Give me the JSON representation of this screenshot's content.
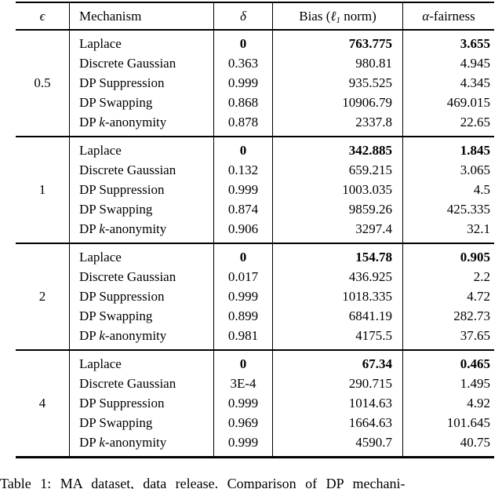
{
  "header": {
    "epsilon": "ϵ",
    "mechanism": "Mechanism",
    "delta": "δ",
    "bias": {
      "pre": "Bias (",
      "ell": "ℓ",
      "sub": "1",
      "post": " norm)"
    },
    "fairness": {
      "alpha": "α",
      "post": "-fairness"
    }
  },
  "groups": [
    {
      "epsilon": "0.5",
      "rows": [
        {
          "mechanism": {
            "pre": "Laplace",
            "it": "",
            "post": ""
          },
          "delta": "0",
          "bias": "763.775",
          "fairness": "3.655"
        },
        {
          "mechanism": {
            "pre": "Discrete Gaussian",
            "it": "",
            "post": ""
          },
          "delta": "0.363",
          "bias": "980.81",
          "fairness": "4.945"
        },
        {
          "mechanism": {
            "pre": "DP Suppression",
            "it": "",
            "post": ""
          },
          "delta": "0.999",
          "bias": "935.525",
          "fairness": "4.345"
        },
        {
          "mechanism": {
            "pre": "DP Swapping",
            "it": "",
            "post": ""
          },
          "delta": "0.868",
          "bias": "10906.79",
          "fairness": "469.015"
        },
        {
          "mechanism": {
            "pre": "DP ",
            "it": "k",
            "post": "-anonymity"
          },
          "delta": "0.878",
          "bias": "2337.8",
          "fairness": "22.65"
        }
      ]
    },
    {
      "epsilon": "1",
      "rows": [
        {
          "mechanism": {
            "pre": "Laplace",
            "it": "",
            "post": ""
          },
          "delta": "0",
          "bias": "342.885",
          "fairness": "1.845"
        },
        {
          "mechanism": {
            "pre": "Discrete Gaussian",
            "it": "",
            "post": ""
          },
          "delta": "0.132",
          "bias": "659.215",
          "fairness": "3.065"
        },
        {
          "mechanism": {
            "pre": "DP Suppression",
            "it": "",
            "post": ""
          },
          "delta": "0.999",
          "bias": "1003.035",
          "fairness": "4.5"
        },
        {
          "mechanism": {
            "pre": "DP Swapping",
            "it": "",
            "post": ""
          },
          "delta": "0.874",
          "bias": "9859.26",
          "fairness": "425.335"
        },
        {
          "mechanism": {
            "pre": "DP ",
            "it": "k",
            "post": "-anonymity"
          },
          "delta": "0.906",
          "bias": "3297.4",
          "fairness": "32.1"
        }
      ]
    },
    {
      "epsilon": "2",
      "rows": [
        {
          "mechanism": {
            "pre": "Laplace",
            "it": "",
            "post": ""
          },
          "delta": "0",
          "bias": "154.78",
          "fairness": "0.905"
        },
        {
          "mechanism": {
            "pre": "Discrete Gaussian",
            "it": "",
            "post": ""
          },
          "delta": "0.017",
          "bias": "436.925",
          "fairness": "2.2"
        },
        {
          "mechanism": {
            "pre": "DP Suppression",
            "it": "",
            "post": ""
          },
          "delta": "0.999",
          "bias": "1018.335",
          "fairness": "4.72"
        },
        {
          "mechanism": {
            "pre": "DP Swapping",
            "it": "",
            "post": ""
          },
          "delta": "0.899",
          "bias": "6841.19",
          "fairness": "282.73"
        },
        {
          "mechanism": {
            "pre": "DP ",
            "it": "k",
            "post": "-anonymity"
          },
          "delta": "0.981",
          "bias": "4175.5",
          "fairness": "37.65"
        }
      ]
    },
    {
      "epsilon": "4",
      "rows": [
        {
          "mechanism": {
            "pre": "Laplace",
            "it": "",
            "post": ""
          },
          "delta": "0",
          "bias": "67.34",
          "fairness": "0.465"
        },
        {
          "mechanism": {
            "pre": "Discrete Gaussian",
            "it": "",
            "post": ""
          },
          "delta": "3E-4",
          "bias": "290.715",
          "fairness": "1.495"
        },
        {
          "mechanism": {
            "pre": "DP Suppression",
            "it": "",
            "post": ""
          },
          "delta": "0.999",
          "bias": "1014.63",
          "fairness": "4.92"
        },
        {
          "mechanism": {
            "pre": "DP Swapping",
            "it": "",
            "post": ""
          },
          "delta": "0.969",
          "bias": "1664.63",
          "fairness": "101.645"
        },
        {
          "mechanism": {
            "pre": "DP ",
            "it": "k",
            "post": "-anonymity"
          },
          "delta": "0.999",
          "bias": "4590.7",
          "fairness": "40.75"
        }
      ]
    }
  ],
  "caption": "Table 1: MA dataset, data release. Comparison of DP mechani-"
}
